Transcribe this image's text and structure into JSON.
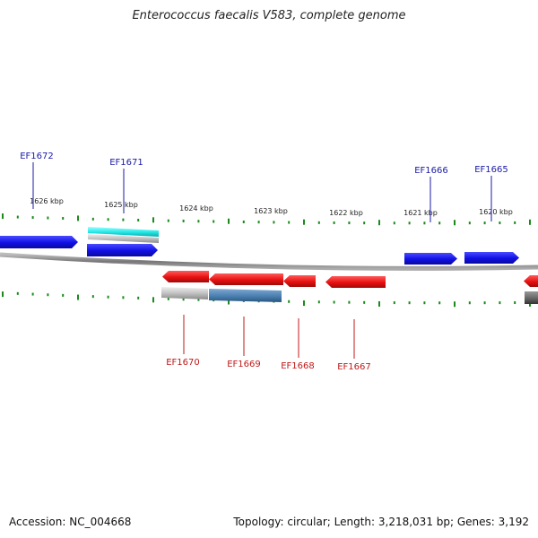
{
  "title": "Enterococcus faecalis V583, complete genome",
  "footer": {
    "accession": "Accession: NC_004668",
    "summary": "Topology: circular; Length: 3,218,031 bp; Genes: 3,192"
  },
  "colors": {
    "forward_gene": "#1010e6",
    "reverse_gene": "#e81010",
    "forward_label": "#1a1aa8",
    "reverse_label": "#c01818",
    "tick": "#1a8a1a",
    "backbone": "#888888",
    "cyan_feature": "#22e6e6",
    "grey_feature": "#bdbdbd",
    "steel_feature": "#4a7fb0"
  },
  "ticks": [
    {
      "label": "1626 kbp"
    },
    {
      "label": "1625 kbp"
    },
    {
      "label": "1624 kbp"
    },
    {
      "label": "1623 kbp"
    },
    {
      "label": "1622 kbp"
    },
    {
      "label": "1621 kbp"
    },
    {
      "label": "1620 kbp"
    }
  ],
  "genes_forward": [
    {
      "name": "EF1672"
    },
    {
      "name": "EF1671"
    },
    {
      "name": "EF1666"
    },
    {
      "name": "EF1665"
    }
  ],
  "genes_reverse": [
    {
      "name": "EF1670"
    },
    {
      "name": "EF1669"
    },
    {
      "name": "EF1668"
    },
    {
      "name": "EF1667"
    }
  ]
}
